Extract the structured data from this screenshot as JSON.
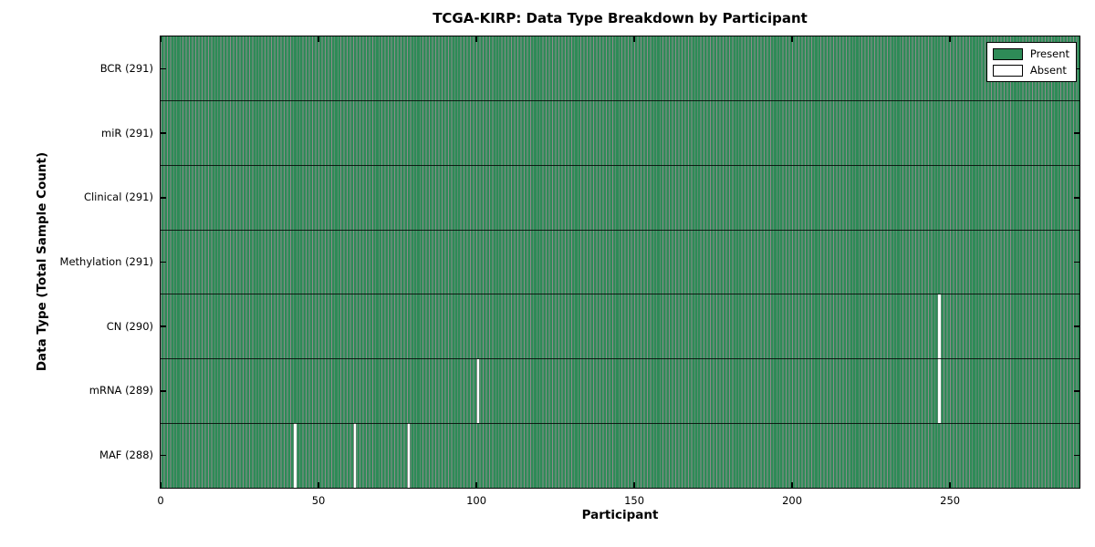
{
  "chart_data": {
    "type": "heatmap",
    "title": "TCGA-KIRP: Data Type Breakdown by Participant",
    "xlabel": "Participant",
    "ylabel": "Data Type (Total Sample Count)",
    "n_participants": 291,
    "xlim": [
      0,
      291
    ],
    "x_ticks": [
      0,
      50,
      100,
      150,
      200,
      250
    ],
    "grid": "row-separators",
    "legend_position": "upper right",
    "present_color": "#2e8b57",
    "absent_color": "#ffffff",
    "legend_items": [
      {
        "label": "Present",
        "color": "#2e8b57"
      },
      {
        "label": "Absent",
        "color": "#ffffff"
      }
    ],
    "rows": [
      {
        "name": "BCR",
        "label": "BCR (291)",
        "total_samples": 291,
        "absent_participants": []
      },
      {
        "name": "miR",
        "label": "miR (291)",
        "total_samples": 291,
        "absent_participants": []
      },
      {
        "name": "Clinical",
        "label": "Clinical (291)",
        "total_samples": 291,
        "absent_participants": []
      },
      {
        "name": "Methylation",
        "label": "Methylation (291)",
        "total_samples": 291,
        "absent_participants": []
      },
      {
        "name": "CN",
        "label": "CN (290)",
        "total_samples": 290,
        "absent_participants": [
          246
        ]
      },
      {
        "name": "mRNA",
        "label": "mRNA (289)",
        "total_samples": 289,
        "absent_participants": [
          100,
          246
        ]
      },
      {
        "name": "MAF",
        "label": "MAF (288)",
        "total_samples": 288,
        "absent_participants": [
          42,
          61,
          78
        ]
      }
    ]
  }
}
